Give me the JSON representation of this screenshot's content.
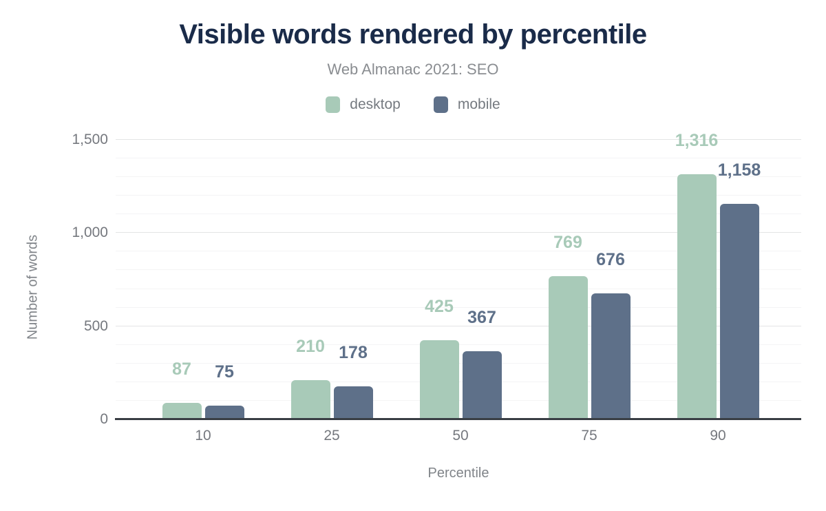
{
  "header": {
    "title": "Visible words rendered by percentile",
    "subtitle": "Web Almanac 2021: SEO"
  },
  "chart_data": {
    "type": "bar",
    "title": "Visible words rendered by percentile",
    "subtitle": "Web Almanac 2021: SEO",
    "categories": [
      "10",
      "25",
      "50",
      "75",
      "90"
    ],
    "series": [
      {
        "name": "desktop",
        "color": "#a8cab8",
        "values": [
          87,
          210,
          425,
          769,
          1316
        ],
        "value_labels": [
          "87",
          "210",
          "425",
          "769",
          "1,316"
        ]
      },
      {
        "name": "mobile",
        "color": "#5e7089",
        "values": [
          75,
          178,
          367,
          676,
          1158
        ],
        "value_labels": [
          "75",
          "178",
          "367",
          "676",
          "1,158"
        ]
      }
    ],
    "xlabel": "Percentile",
    "ylabel": "Number of words",
    "ylim": [
      0,
      1500
    ],
    "yticks": [
      0,
      500,
      1000,
      1500
    ],
    "ytick_labels": [
      "0",
      "500",
      "1,000",
      "1,500"
    ],
    "minor_grid_step": 100,
    "major_grid_step": 500,
    "grid": true,
    "legend_position": "top"
  },
  "colors": {
    "title": "#1a2b49",
    "subtitle": "#8a8d91",
    "axis_text": "#75787e",
    "grid_major": "#e3e4e5",
    "grid_minor": "#f4f4f5",
    "axis_line": "#393e44",
    "background": "#ffffff"
  }
}
